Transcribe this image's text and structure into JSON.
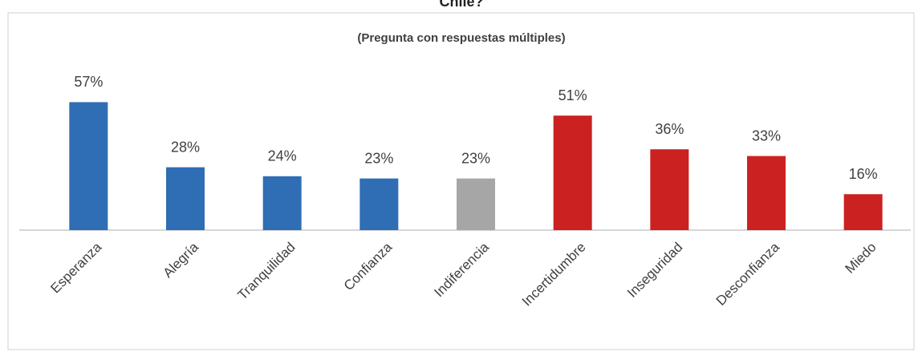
{
  "chart_data": {
    "type": "bar",
    "title": "Chile?",
    "subtitle": "(Pregunta con respuestas múltiples)",
    "categories": [
      "Esperanza",
      "Alegría",
      "Tranquilidad",
      "Confianza",
      "Indiferencia",
      "Incertidumbre",
      "Inseguridad",
      "Desconfianza",
      "Miedo"
    ],
    "values": [
      57,
      28,
      24,
      23,
      23,
      51,
      36,
      33,
      16
    ],
    "value_labels": [
      "57%",
      "28%",
      "24%",
      "23%",
      "23%",
      "51%",
      "36%",
      "33%",
      "16%"
    ],
    "colors": [
      "#2f6db5",
      "#2f6db5",
      "#2f6db5",
      "#2f6db5",
      "#a6a6a6",
      "#cc2121",
      "#cc2121",
      "#cc2121",
      "#cc2121"
    ],
    "ylim": [
      0,
      60
    ]
  }
}
